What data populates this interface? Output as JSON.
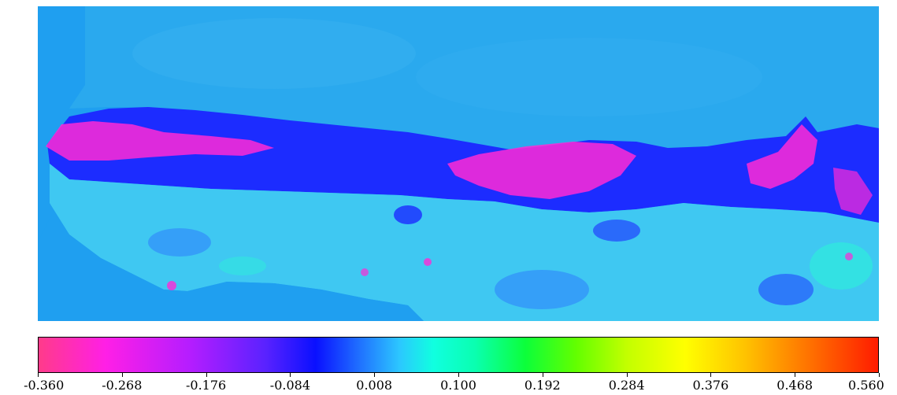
{
  "map": {
    "ocean_color": "#1f9ff0",
    "desert_color": "#2aa8ee",
    "sahel_band_color": "#1c2cff",
    "negative_hotspot_color": "#ff2ad6",
    "positive_area_color": "#3fd0f0"
  },
  "colorbar": {
    "min": -0.36,
    "max": 0.56,
    "tick_labels": [
      "-0.360",
      "-0.268",
      "-0.176",
      "-0.084",
      "0.008",
      "0.100",
      "0.192",
      "0.284",
      "0.376",
      "0.468",
      "0.560"
    ],
    "colors": [
      "#ff3b8a",
      "#ff1fe6",
      "#b51dff",
      "#0a10ff",
      "#2cc7ff",
      "#10ffe0",
      "#0cff3a",
      "#c2ff00",
      "#ffff00",
      "#ff7a00",
      "#ff1c00"
    ]
  }
}
